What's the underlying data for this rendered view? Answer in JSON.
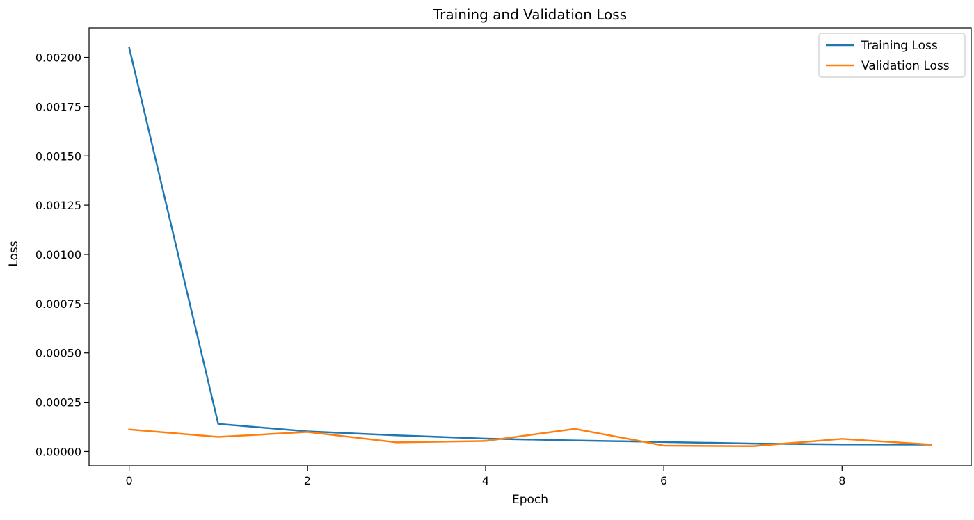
{
  "chart_data": {
    "type": "line",
    "title": "Training and Validation Loss",
    "xlabel": "Epoch",
    "ylabel": "Loss",
    "x": [
      0,
      1,
      2,
      3,
      4,
      5,
      6,
      7,
      8,
      9
    ],
    "xlim": [
      -0.45,
      9.45
    ],
    "ylim": [
      -7.25e-05,
      0.00215
    ],
    "xticks": [
      0,
      2,
      4,
      6,
      8
    ],
    "xtick_labels": [
      "0",
      "2",
      "4",
      "6",
      "8"
    ],
    "yticks": [
      0,
      0.00025,
      0.0005,
      0.00075,
      0.001,
      0.00125,
      0.0015,
      0.00175,
      0.002
    ],
    "ytick_labels": [
      "0.00000",
      "0.00025",
      "0.00050",
      "0.00075",
      "0.00100",
      "0.00125",
      "0.00150",
      "0.00175",
      "0.00200"
    ],
    "grid": false,
    "legend_position": "top-right",
    "series": [
      {
        "name": "Training Loss",
        "color": "#1f77b4",
        "values": [
          0.00205,
          0.00014,
          0.000102,
          8.2e-05,
          6.5e-05,
          5.6e-05,
          4.8e-05,
          4e-05,
          3.6e-05,
          3.5e-05
        ]
      },
      {
        "name": "Validation Loss",
        "color": "#ff7f0e",
        "values": [
          0.000112,
          7.4e-05,
          9.9e-05,
          4.6e-05,
          5.3e-05,
          0.000115,
          3e-05,
          2.7e-05,
          6.4e-05,
          3.5e-05
        ]
      }
    ]
  }
}
